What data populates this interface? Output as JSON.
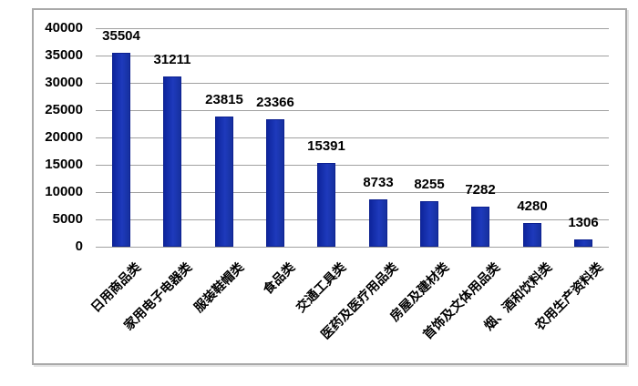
{
  "chart_data": {
    "type": "bar",
    "title": "",
    "xlabel": "",
    "ylabel": "",
    "categories": [
      "日用商品类",
      "家用电子电器类",
      "服装鞋帽类",
      "食品类",
      "交通工具类",
      "医药及医疗用品类",
      "房屋及建材类",
      "首饰及文体用品类",
      "烟、酒和饮料类",
      "农用生产资料类"
    ],
    "values": [
      35504,
      31211,
      23815,
      23366,
      15391,
      8733,
      8255,
      7282,
      4280,
      1306
    ],
    "data_labels": [
      "35504",
      "31211",
      "23815",
      "23366",
      "15391",
      "8733",
      "8255",
      "7282",
      "4280",
      "1306"
    ],
    "y_ticks": [
      "0",
      "5000",
      "10000",
      "15000",
      "20000",
      "25000",
      "30000",
      "35000",
      "40000"
    ],
    "ylim": [
      0,
      40000
    ],
    "ytick_step": 5000,
    "grid": "horizontal",
    "legend": "none",
    "category_label_rotation_deg": -45,
    "colors": {
      "bar": "#1733b2",
      "bar_border": "#0d2190",
      "gridline": "#a0a0a0",
      "frame_border": "#a9a9a9",
      "label_text": "#000000",
      "background": "#ffffff"
    }
  }
}
